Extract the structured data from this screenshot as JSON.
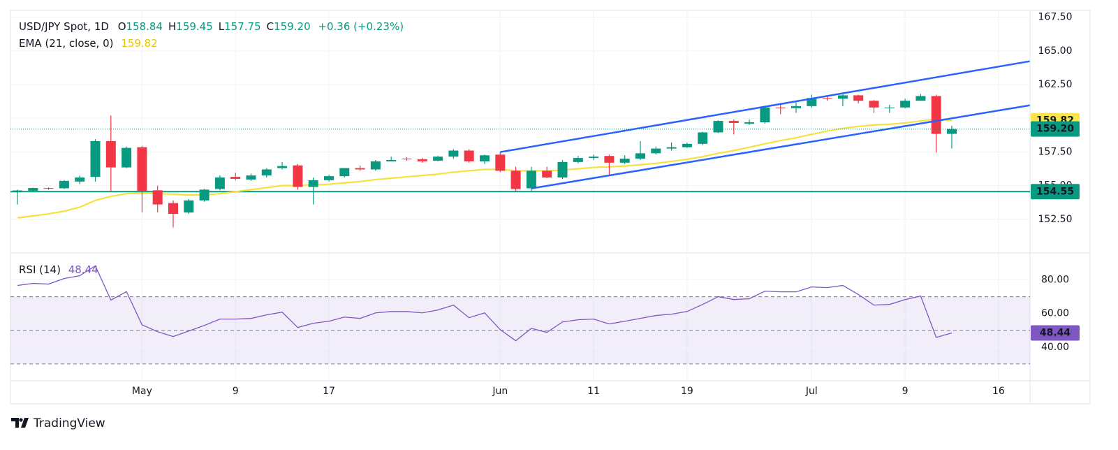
{
  "chart_data": {
    "type": "candlestick",
    "header": {
      "symbol": "USD/JPY Spot, 1D",
      "ohlc": [
        {
          "label": "O",
          "value": "158.84"
        },
        {
          "label": "H",
          "value": "159.45"
        },
        {
          "label": "L",
          "value": "157.75"
        },
        {
          "label": "C",
          "value": "159.20"
        }
      ],
      "change": "+0.36 (+0.23%)"
    },
    "categories": [
      null,
      null,
      null,
      null,
      null,
      null,
      null,
      null,
      "May",
      null,
      null,
      null,
      null,
      null,
      "9",
      null,
      null,
      null,
      null,
      null,
      "17",
      null,
      null,
      null,
      null,
      null,
      null,
      null,
      null,
      null,
      null,
      "Jun",
      null,
      null,
      null,
      null,
      null,
      "11",
      null,
      null,
      null,
      null,
      null,
      "19",
      null,
      null,
      null,
      null,
      null,
      null,
      null,
      "Jul",
      null,
      null,
      null,
      null,
      null,
      "9",
      null,
      null,
      null,
      null,
      null,
      "16"
    ],
    "open": [
      154.55,
      154.62,
      154.82,
      154.8,
      155.3,
      155.65,
      158.3,
      156.35,
      157.85,
      154.65,
      153.7,
      153.0,
      153.9,
      154.75,
      155.65,
      155.45,
      155.75,
      156.3,
      156.5,
      154.9,
      155.4,
      155.7,
      156.3,
      156.2,
      156.8,
      157.0,
      156.95,
      156.85,
      157.15,
      157.6,
      156.8,
      157.3,
      156.1,
      154.8,
      156.1,
      155.6,
      156.75,
      157.05,
      157.2,
      156.7,
      157.0,
      157.4,
      157.75,
      157.85,
      158.1,
      158.95,
      159.8,
      159.6,
      159.7,
      160.8,
      160.75,
      160.9,
      161.5,
      161.45,
      161.7,
      161.3,
      160.75,
      160.8,
      161.3,
      161.65,
      158.84,
      null,
      null,
      null
    ],
    "high": [
      154.7,
      154.85,
      154.88,
      155.4,
      155.75,
      158.45,
      160.2,
      157.9,
      157.95,
      155.0,
      153.9,
      154.0,
      154.75,
      155.75,
      155.95,
      155.9,
      156.3,
      156.75,
      156.6,
      155.6,
      155.8,
      156.3,
      156.5,
      156.9,
      157.15,
      157.1,
      157.05,
      157.2,
      157.7,
      157.7,
      157.3,
      157.5,
      156.4,
      156.4,
      156.4,
      156.9,
      157.2,
      157.3,
      157.3,
      157.25,
      158.3,
      157.9,
      158.2,
      158.2,
      159.0,
      159.85,
      159.9,
      159.9,
      160.85,
      161.0,
      161.2,
      161.75,
      161.7,
      161.9,
      161.75,
      161.35,
      161.0,
      161.45,
      161.8,
      161.75,
      159.45,
      null,
      null,
      null
    ],
    "low": [
      153.6,
      154.58,
      154.7,
      154.75,
      155.1,
      155.3,
      154.55,
      156.3,
      153.0,
      153.0,
      151.9,
      152.9,
      153.8,
      154.65,
      155.4,
      155.35,
      155.6,
      156.2,
      154.7,
      153.6,
      155.3,
      155.6,
      156.1,
      156.1,
      156.8,
      156.85,
      156.7,
      156.8,
      157.0,
      156.7,
      156.6,
      156.0,
      154.6,
      154.6,
      155.55,
      155.5,
      156.65,
      156.9,
      155.7,
      156.6,
      156.9,
      157.3,
      157.6,
      157.8,
      158.0,
      158.9,
      158.8,
      159.5,
      159.6,
      160.3,
      160.4,
      160.8,
      161.3,
      160.9,
      161.1,
      160.4,
      160.4,
      160.75,
      161.3,
      157.45,
      157.75,
      null,
      null,
      null
    ],
    "close": [
      154.64,
      154.82,
      154.78,
      155.35,
      155.6,
      158.3,
      156.35,
      157.8,
      154.6,
      153.6,
      152.9,
      153.9,
      154.7,
      155.6,
      155.5,
      155.75,
      156.2,
      156.45,
      154.9,
      155.4,
      155.7,
      156.3,
      156.2,
      156.8,
      156.9,
      156.95,
      156.8,
      157.15,
      157.6,
      156.8,
      157.25,
      156.1,
      154.75,
      156.1,
      155.6,
      156.75,
      157.05,
      157.15,
      156.7,
      157.0,
      157.4,
      157.75,
      157.85,
      158.1,
      158.95,
      159.8,
      159.65,
      159.7,
      160.8,
      160.75,
      160.9,
      161.5,
      161.45,
      161.7,
      161.3,
      160.8,
      160.8,
      161.3,
      161.65,
      158.84,
      159.2,
      null,
      null,
      null
    ],
    "up_color": "#089981",
    "down_color": "#f23645",
    "ema": {
      "name": "EMA (21, close, 0)",
      "color": "#f5e23f",
      "values": [
        152.6,
        152.75,
        152.9,
        153.1,
        153.4,
        153.9,
        154.2,
        154.4,
        154.45,
        154.4,
        154.35,
        154.3,
        154.3,
        154.4,
        154.55,
        154.7,
        154.85,
        155.0,
        155.0,
        155.05,
        155.1,
        155.2,
        155.3,
        155.45,
        155.55,
        155.65,
        155.75,
        155.85,
        156.0,
        156.1,
        156.2,
        156.2,
        156.1,
        156.1,
        156.1,
        156.15,
        156.25,
        156.35,
        156.4,
        156.45,
        156.55,
        156.65,
        156.8,
        156.95,
        157.15,
        157.4,
        157.6,
        157.85,
        158.1,
        158.35,
        158.55,
        158.8,
        159.05,
        159.25,
        159.4,
        159.5,
        159.55,
        159.65,
        159.8,
        159.95,
        159.82,
        null,
        null,
        null
      ]
    },
    "trendlines": [
      {
        "x": [
          31,
          65
        ],
        "y": [
          157.49,
          164.23
        ]
      },
      {
        "x": [
          33,
          65
        ],
        "y": [
          154.79,
          160.96
        ]
      }
    ],
    "trendline_color": "#2962ff",
    "hline": {
      "value": 154.55,
      "color": "#089981"
    },
    "ylim": [
      150,
      168
    ],
    "yticks": [
      {
        "value": 152.5,
        "label": "152.50"
      },
      {
        "value": 155,
        "label": "155.00"
      },
      {
        "value": 157.5,
        "label": "157.50"
      },
      {
        "value": 160,
        "label": "160.00"
      },
      {
        "value": 162.5,
        "label": "162.50"
      },
      {
        "value": 165,
        "label": "165.00"
      },
      {
        "value": 167.5,
        "label": "167.50"
      }
    ],
    "grid": true,
    "rsi": {
      "name": "RSI (14)",
      "color": "#7e57c2",
      "values": [
        76.7,
        77.9,
        77.5,
        80.8,
        82.5,
        88.3,
        68,
        73,
        53.3,
        49.2,
        46.3,
        49.6,
        52.9,
        56.7,
        56.7,
        57.1,
        59.2,
        60.8,
        51.7,
        54.2,
        55.4,
        57.9,
        57.1,
        60.4,
        61.2,
        61.2,
        60.4,
        62.1,
        65,
        57.5,
        60.4,
        50.4,
        43.8,
        51.2,
        48.8,
        55,
        56.3,
        56.7,
        53.8,
        55.4,
        57.1,
        58.8,
        59.6,
        61.2,
        65.4,
        70,
        68.3,
        68.8,
        73.3,
        72.9,
        72.9,
        75.8,
        75.4,
        76.7,
        71.3,
        65,
        65.4,
        68.3,
        70.4,
        45.8,
        48.44,
        null,
        null,
        null
      ],
      "ylim": [
        20,
        96
      ],
      "yticks": [
        {
          "value": 40,
          "label": "40.00"
        },
        {
          "value": 60,
          "label": "60.00"
        },
        {
          "value": 80,
          "label": "80.00"
        }
      ],
      "bands": [
        30,
        50,
        70
      ]
    },
    "brand": "TradingView"
  }
}
